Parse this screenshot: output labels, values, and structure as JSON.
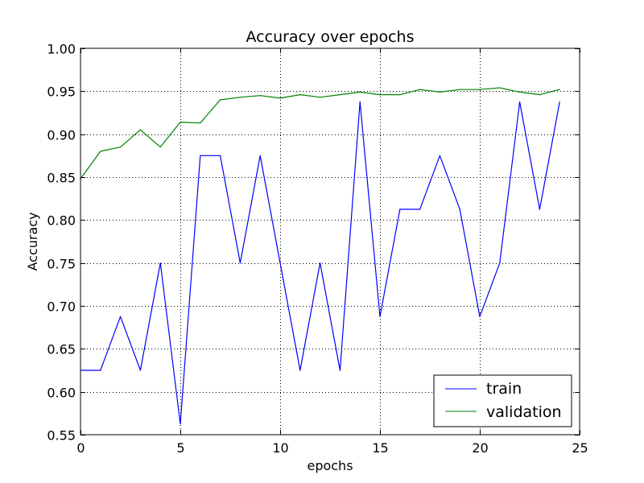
{
  "chart_data": {
    "type": "line",
    "title": "Accuracy over epochs",
    "xlabel": "epochs",
    "ylabel": "Accuracy",
    "xlim": [
      0,
      25
    ],
    "ylim": [
      0.55,
      1.0
    ],
    "x_ticks": [
      0,
      5,
      10,
      15,
      20,
      25
    ],
    "y_ticks": [
      0.55,
      0.6,
      0.65,
      0.7,
      0.75,
      0.8,
      0.85,
      0.9,
      0.95,
      1.0
    ],
    "x_tick_labels": [
      "0",
      "5",
      "10",
      "15",
      "20",
      "25"
    ],
    "y_tick_labels": [
      "0.55",
      "0.60",
      "0.65",
      "0.70",
      "0.75",
      "0.80",
      "0.85",
      "0.90",
      "0.95",
      "1.00"
    ],
    "grid": true,
    "legend_position": "bottom-right",
    "x": [
      0,
      1,
      2,
      3,
      4,
      5,
      6,
      7,
      8,
      9,
      10,
      11,
      12,
      13,
      14,
      15,
      16,
      17,
      18,
      19,
      20,
      21,
      22,
      23,
      24
    ],
    "series": [
      {
        "name": "train",
        "color": "#0000ff",
        "values": [
          0.625,
          0.625,
          0.6875,
          0.625,
          0.75,
          0.5625,
          0.875,
          0.875,
          0.75,
          0.875,
          0.75,
          0.625,
          0.75,
          0.625,
          0.9375,
          0.6875,
          0.8125,
          0.8125,
          0.875,
          0.8125,
          0.6875,
          0.75,
          0.9375,
          0.8125,
          0.9375
        ]
      },
      {
        "name": "validation",
        "color": "#008000",
        "values": [
          0.848,
          0.88,
          0.885,
          0.905,
          0.885,
          0.914,
          0.913,
          0.94,
          0.943,
          0.945,
          0.942,
          0.946,
          0.943,
          0.946,
          0.949,
          0.946,
          0.946,
          0.952,
          0.949,
          0.952,
          0.952,
          0.954,
          0.949,
          0.946,
          0.952
        ]
      }
    ]
  }
}
